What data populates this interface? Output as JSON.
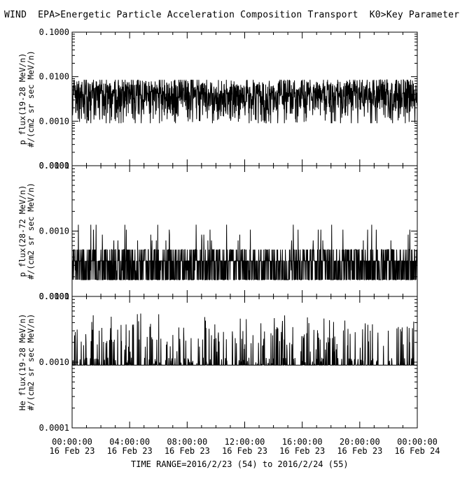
{
  "header": {
    "title": "WIND  EPA>Energetic Particle Acceleration Composition Transport  K0>Key Parameter"
  },
  "footer": {
    "time_range": "TIME RANGE=2016/2/23 (54) to 2016/2/24 (55)"
  },
  "chart_data": [
    {
      "type": "line",
      "ylabel_line1": "p flux(19-28 MeV/n)",
      "ylabel_line2": "#/(cm2 sr sec MeV/n)",
      "yscale": "log",
      "ylim": [
        0.0001,
        0.1
      ],
      "yticks": [
        "0.1000",
        "0.0100",
        "0.0010",
        "0.0001"
      ],
      "x_hours": [
        0,
        24
      ],
      "baseline": 0.0034,
      "sample_values": [
        0.0041,
        0.0026,
        0.0055,
        0.0016,
        0.0072,
        0.0034,
        0.0009,
        0.0047,
        0.0063,
        0.0021,
        0.0038,
        0.0081,
        0.0029,
        0.0012,
        0.0052,
        0.0043,
        0.0018,
        0.0067,
        0.0035,
        0.0024
      ],
      "value_range": [
        0.0009,
        0.0085
      ],
      "color": "#000000"
    },
    {
      "type": "line",
      "ylabel_line1": "p flux(28-72 MeV/n)",
      "ylabel_line2": "#/(cm2 sr sec MeV/n)",
      "yscale": "log",
      "ylim": [
        0.0001,
        0.01
      ],
      "yticks": [
        "0.0100",
        "0.0010",
        "0.0001"
      ],
      "x_hours": [
        0,
        24
      ],
      "baseline": 0.00035,
      "sample_values": [
        0.00035,
        0.00052,
        0.00018,
        0.00072,
        0.00025,
        0.00035,
        0.00105,
        0.00018,
        0.00052,
        0.00035,
        0.00125,
        0.00025,
        0.00072,
        0.00035,
        0.00018,
        0.00052,
        0.00035,
        0.00088,
        0.00025,
        0.00052
      ],
      "value_range": [
        0.00018,
        0.00125
      ],
      "color": "#000000"
    },
    {
      "type": "line",
      "ylabel_line1": "He flux(19-28 MeV/n)",
      "ylabel_line2": "#/(cm2 sr sec MeV/n)",
      "yscale": "log",
      "ylim": [
        0.0001,
        0.01
      ],
      "yticks": [
        "0.0100",
        "0.0010",
        "0.0001"
      ],
      "x_hours": [
        0,
        24
      ],
      "baseline": 0.0009,
      "sample_values": [
        0.0009,
        0.0009,
        0.0018,
        0.0009,
        0.0027,
        0.0009,
        0.0009,
        0.0036,
        0.0009,
        0.0018,
        0.0009,
        0.0009,
        0.0027,
        0.0009,
        0.0045,
        0.0009,
        0.0018,
        0.0009,
        0.0009,
        0.0027
      ],
      "value_range": [
        0.0009,
        0.0055
      ],
      "color": "#000000"
    }
  ],
  "x_axis": {
    "tick_labels": [
      {
        "time": "00:00:00",
        "date": "16 Feb 23"
      },
      {
        "time": "04:00:00",
        "date": "16 Feb 23"
      },
      {
        "time": "08:00:00",
        "date": "16 Feb 23"
      },
      {
        "time": "12:00:00",
        "date": "16 Feb 23"
      },
      {
        "time": "16:00:00",
        "date": "16 Feb 23"
      },
      {
        "time": "20:00:00",
        "date": "16 Feb 23"
      },
      {
        "time": "00:00:00",
        "date": "16 Feb 24"
      }
    ],
    "tick_hours": [
      0,
      4,
      8,
      12,
      16,
      20,
      24
    ]
  }
}
